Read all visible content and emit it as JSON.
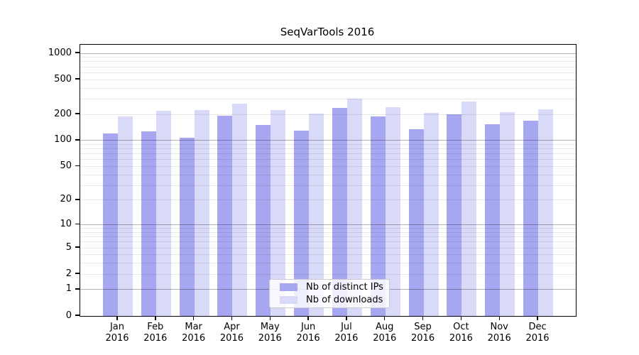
{
  "chart_data": {
    "type": "bar",
    "title": "SeqVarTools 2016",
    "categories": [
      "Jan",
      "Feb",
      "Mar",
      "Apr",
      "May",
      "Jun",
      "Jul",
      "Aug",
      "Sep",
      "Oct",
      "Nov",
      "Dec"
    ],
    "category_year": "2016",
    "series": [
      {
        "name": "Nb of distinct IPs",
        "color": "#a6a6f1",
        "values": [
          120,
          128,
          108,
          191,
          150,
          131,
          237,
          188,
          135,
          201,
          153,
          168
        ]
      },
      {
        "name": "Nb of downloads",
        "color": "#d9d9f8",
        "values": [
          188,
          218,
          222,
          265,
          225,
          202,
          303,
          240,
          206,
          278,
          210,
          228
        ]
      }
    ],
    "y_axis": {
      "scale": "log1p",
      "ticks": [
        1000,
        500,
        200,
        100,
        50,
        20,
        10,
        5,
        2,
        1,
        0
      ],
      "range": [
        0,
        1250
      ]
    },
    "x_axis": {
      "tick_label_lines": 2
    },
    "grid": {
      "minor_on": true,
      "major_at": [
        1,
        10,
        100,
        1000
      ]
    },
    "legend": {
      "position": "lower center",
      "entries": [
        "Nb of distinct IPs",
        "Nb of downloads"
      ]
    }
  }
}
